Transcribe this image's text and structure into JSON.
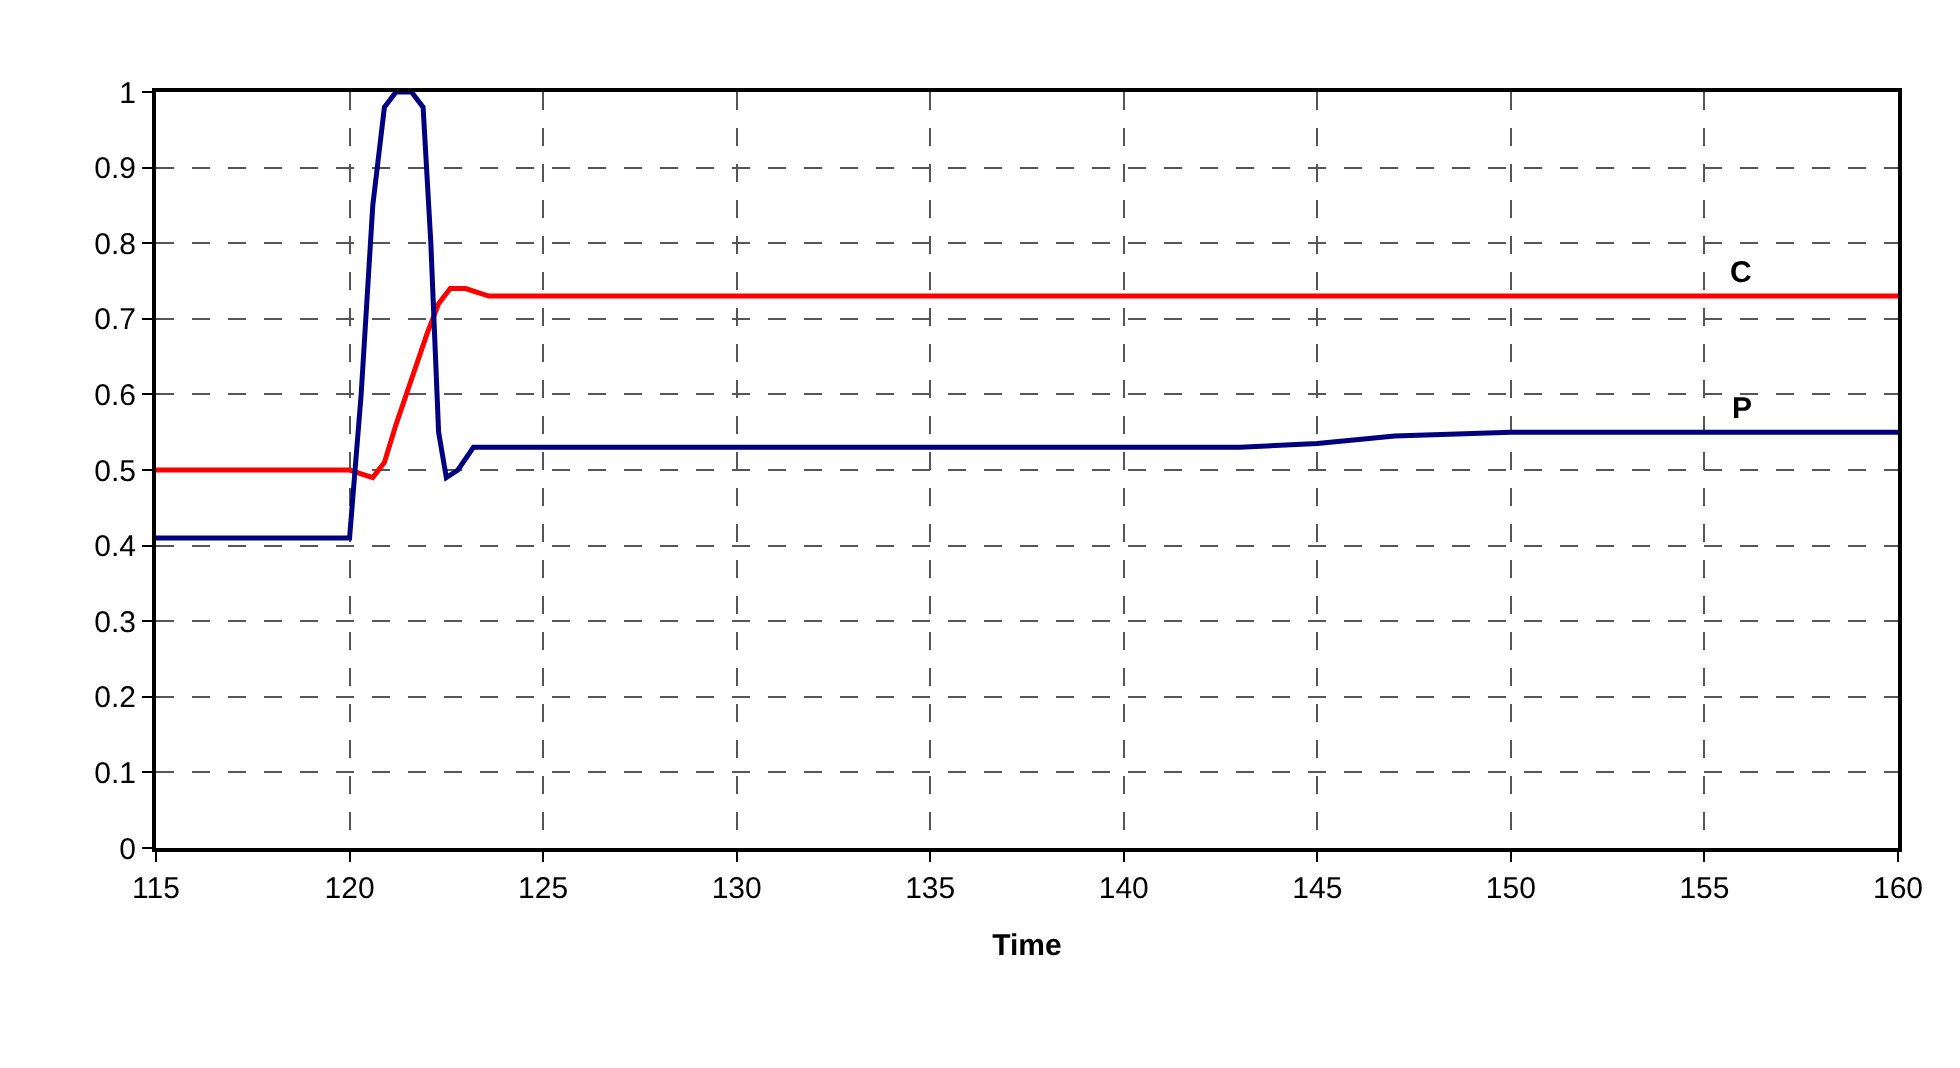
{
  "chart_data": {
    "type": "line",
    "xlabel": "Time",
    "xlim": [
      115,
      160
    ],
    "xticks": [
      115,
      120,
      125,
      130,
      135,
      140,
      145,
      150,
      155,
      160
    ],
    "ylim": [
      0,
      1
    ],
    "yticks": [
      0,
      0.1,
      0.2,
      0.3,
      0.4,
      0.5,
      0.6,
      0.7,
      0.8,
      0.9,
      1
    ],
    "grid": true,
    "legend": false,
    "marker": "none",
    "line_style": "solid",
    "series": [
      {
        "name": "C",
        "color": "#ff0000",
        "x": [
          115,
          120,
          120.3,
          120.6,
          120.9,
          121.2,
          121.6,
          122,
          122.3,
          122.6,
          123,
          123.3,
          123.6,
          124,
          130,
          140,
          150,
          160
        ],
        "values": [
          0.5,
          0.5,
          0.495,
          0.49,
          0.51,
          0.56,
          0.62,
          0.68,
          0.72,
          0.74,
          0.74,
          0.735,
          0.73,
          0.73,
          0.73,
          0.73,
          0.73,
          0.73
        ]
      },
      {
        "name": "P",
        "color": "#000080",
        "x": [
          115,
          120,
          120.3,
          120.6,
          120.9,
          121.2,
          121.6,
          121.9,
          122.1,
          122.3,
          122.5,
          122.8,
          123.2,
          123.5,
          130,
          140,
          143,
          145,
          147,
          150,
          155,
          160
        ],
        "values": [
          0.41,
          0.41,
          0.6,
          0.85,
          0.98,
          1,
          1,
          0.98,
          0.8,
          0.55,
          0.49,
          0.5,
          0.53,
          0.53,
          0.53,
          0.53,
          0.53,
          0.535,
          0.545,
          0.55,
          0.55,
          0.55
        ]
      }
    ]
  }
}
